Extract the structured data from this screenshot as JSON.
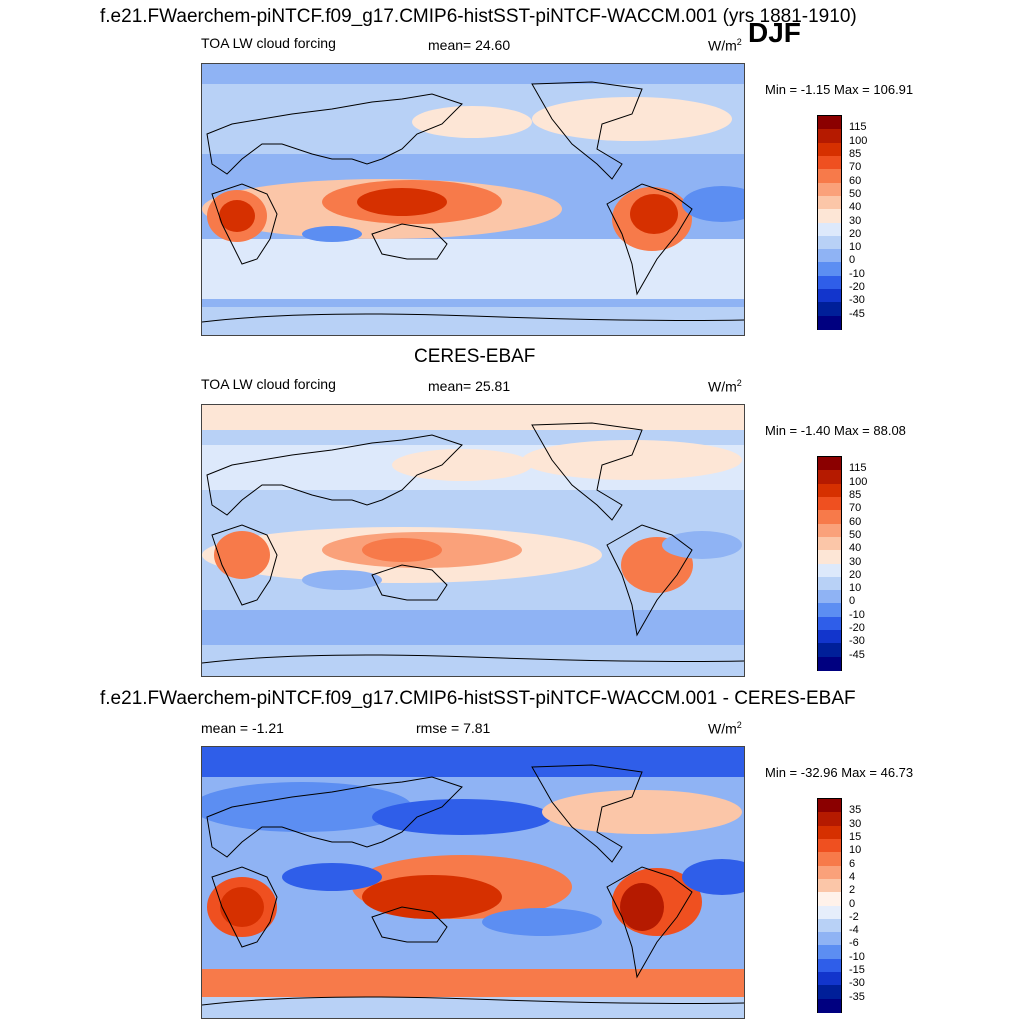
{
  "season": "DJF",
  "panels": [
    {
      "id": "model",
      "heading": "f.e21.FWaerchem-piNTCF.f09_g17.CMIP6-histSST-piNTCF-WACCM.001 (yrs 1881-1910)",
      "left_label": "TOA LW cloud forcing",
      "center_label": "mean=  24.60",
      "units": "W/m",
      "units_exp": "2",
      "minmax": "Min =  -1.15 Max = 106.91",
      "colorbar_labels": [
        "115",
        "100",
        "85",
        "70",
        "60",
        "50",
        "40",
        "30",
        "20",
        "10",
        "0",
        "-10",
        "-20",
        "-30",
        "-45"
      ],
      "colorbar_colors": [
        "#8b0000",
        "#b51a00",
        "#d63000",
        "#ef5020",
        "#f77a4a",
        "#faa17a",
        "#fbc6a8",
        "#fde6d6",
        "#dde9fb",
        "#b8d1f6",
        "#8fb3f4",
        "#5c8ef2",
        "#2f5ee9",
        "#1235cc",
        "#001f99",
        "#000080"
      ]
    },
    {
      "id": "obs",
      "heading": "CERES-EBAF",
      "left_label": "TOA LW cloud forcing",
      "center_label": "mean=  25.81",
      "units": "W/m",
      "units_exp": "2",
      "minmax": "Min =  -1.40 Max =  88.08",
      "colorbar_labels": [
        "115",
        "100",
        "85",
        "70",
        "60",
        "50",
        "40",
        "30",
        "20",
        "10",
        "0",
        "-10",
        "-20",
        "-30",
        "-45"
      ],
      "colorbar_colors": [
        "#8b0000",
        "#b51a00",
        "#d63000",
        "#ef5020",
        "#f77a4a",
        "#faa17a",
        "#fbc6a8",
        "#fde6d6",
        "#dde9fb",
        "#b8d1f6",
        "#8fb3f4",
        "#5c8ef2",
        "#2f5ee9",
        "#1235cc",
        "#001f99",
        "#000080"
      ]
    },
    {
      "id": "diff",
      "heading": "f.e21.FWaerchem-piNTCF.f09_g17.CMIP6-histSST-piNTCF-WACCM.001 - CERES-EBAF",
      "left_label": "mean =  -1.21",
      "center_label": "rmse =   7.81",
      "units": "W/m",
      "units_exp": "2",
      "minmax": "Min = -32.96 Max =  46.73",
      "colorbar_labels": [
        "35",
        "30",
        "15",
        "10",
        "6",
        "4",
        "2",
        "0",
        "-2",
        "-4",
        "-6",
        "-10",
        "-15",
        "-30",
        "-35"
      ],
      "colorbar_colors": [
        "#8b0000",
        "#b51a00",
        "#d63000",
        "#ef5020",
        "#f77a4a",
        "#faa17a",
        "#fbc6a8",
        "#fff2ea",
        "#e6eefb",
        "#b8d1f6",
        "#8fb3f4",
        "#5c8ef2",
        "#2f5ee9",
        "#1235cc",
        "#001f99",
        "#000080"
      ]
    }
  ]
}
